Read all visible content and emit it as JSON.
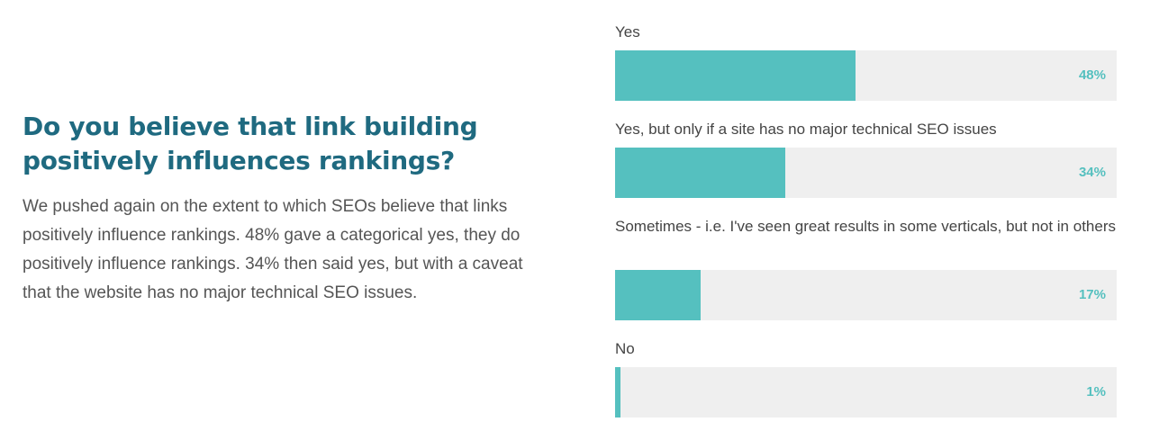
{
  "article": {
    "title": "Do you believe that link building positively influences rankings?",
    "body": "We pushed again on the extent to which SEOs believe that links positively influence rankings. 48% gave a categorical yes, they do positively influence rankings. 34% then said yes, but with a caveat that the website has no major technical SEO issues."
  },
  "colors": {
    "title": "#1f6a80",
    "bar_fill": "#55c0bf",
    "bar_track": "#efefef",
    "value_text": "#55c0bf"
  },
  "chart_data": {
    "type": "bar",
    "orientation": "horizontal",
    "categories": [
      "Yes",
      "Yes, but only if a site has no major technical SEO issues",
      "Sometimes - i.e. I've seen great results in some verticals, but not in others",
      "No"
    ],
    "values": [
      48,
      34,
      17,
      1
    ],
    "value_labels": [
      "48%",
      "34%",
      "17%",
      "1%"
    ],
    "xlim": [
      0,
      100
    ],
    "grid": false
  }
}
